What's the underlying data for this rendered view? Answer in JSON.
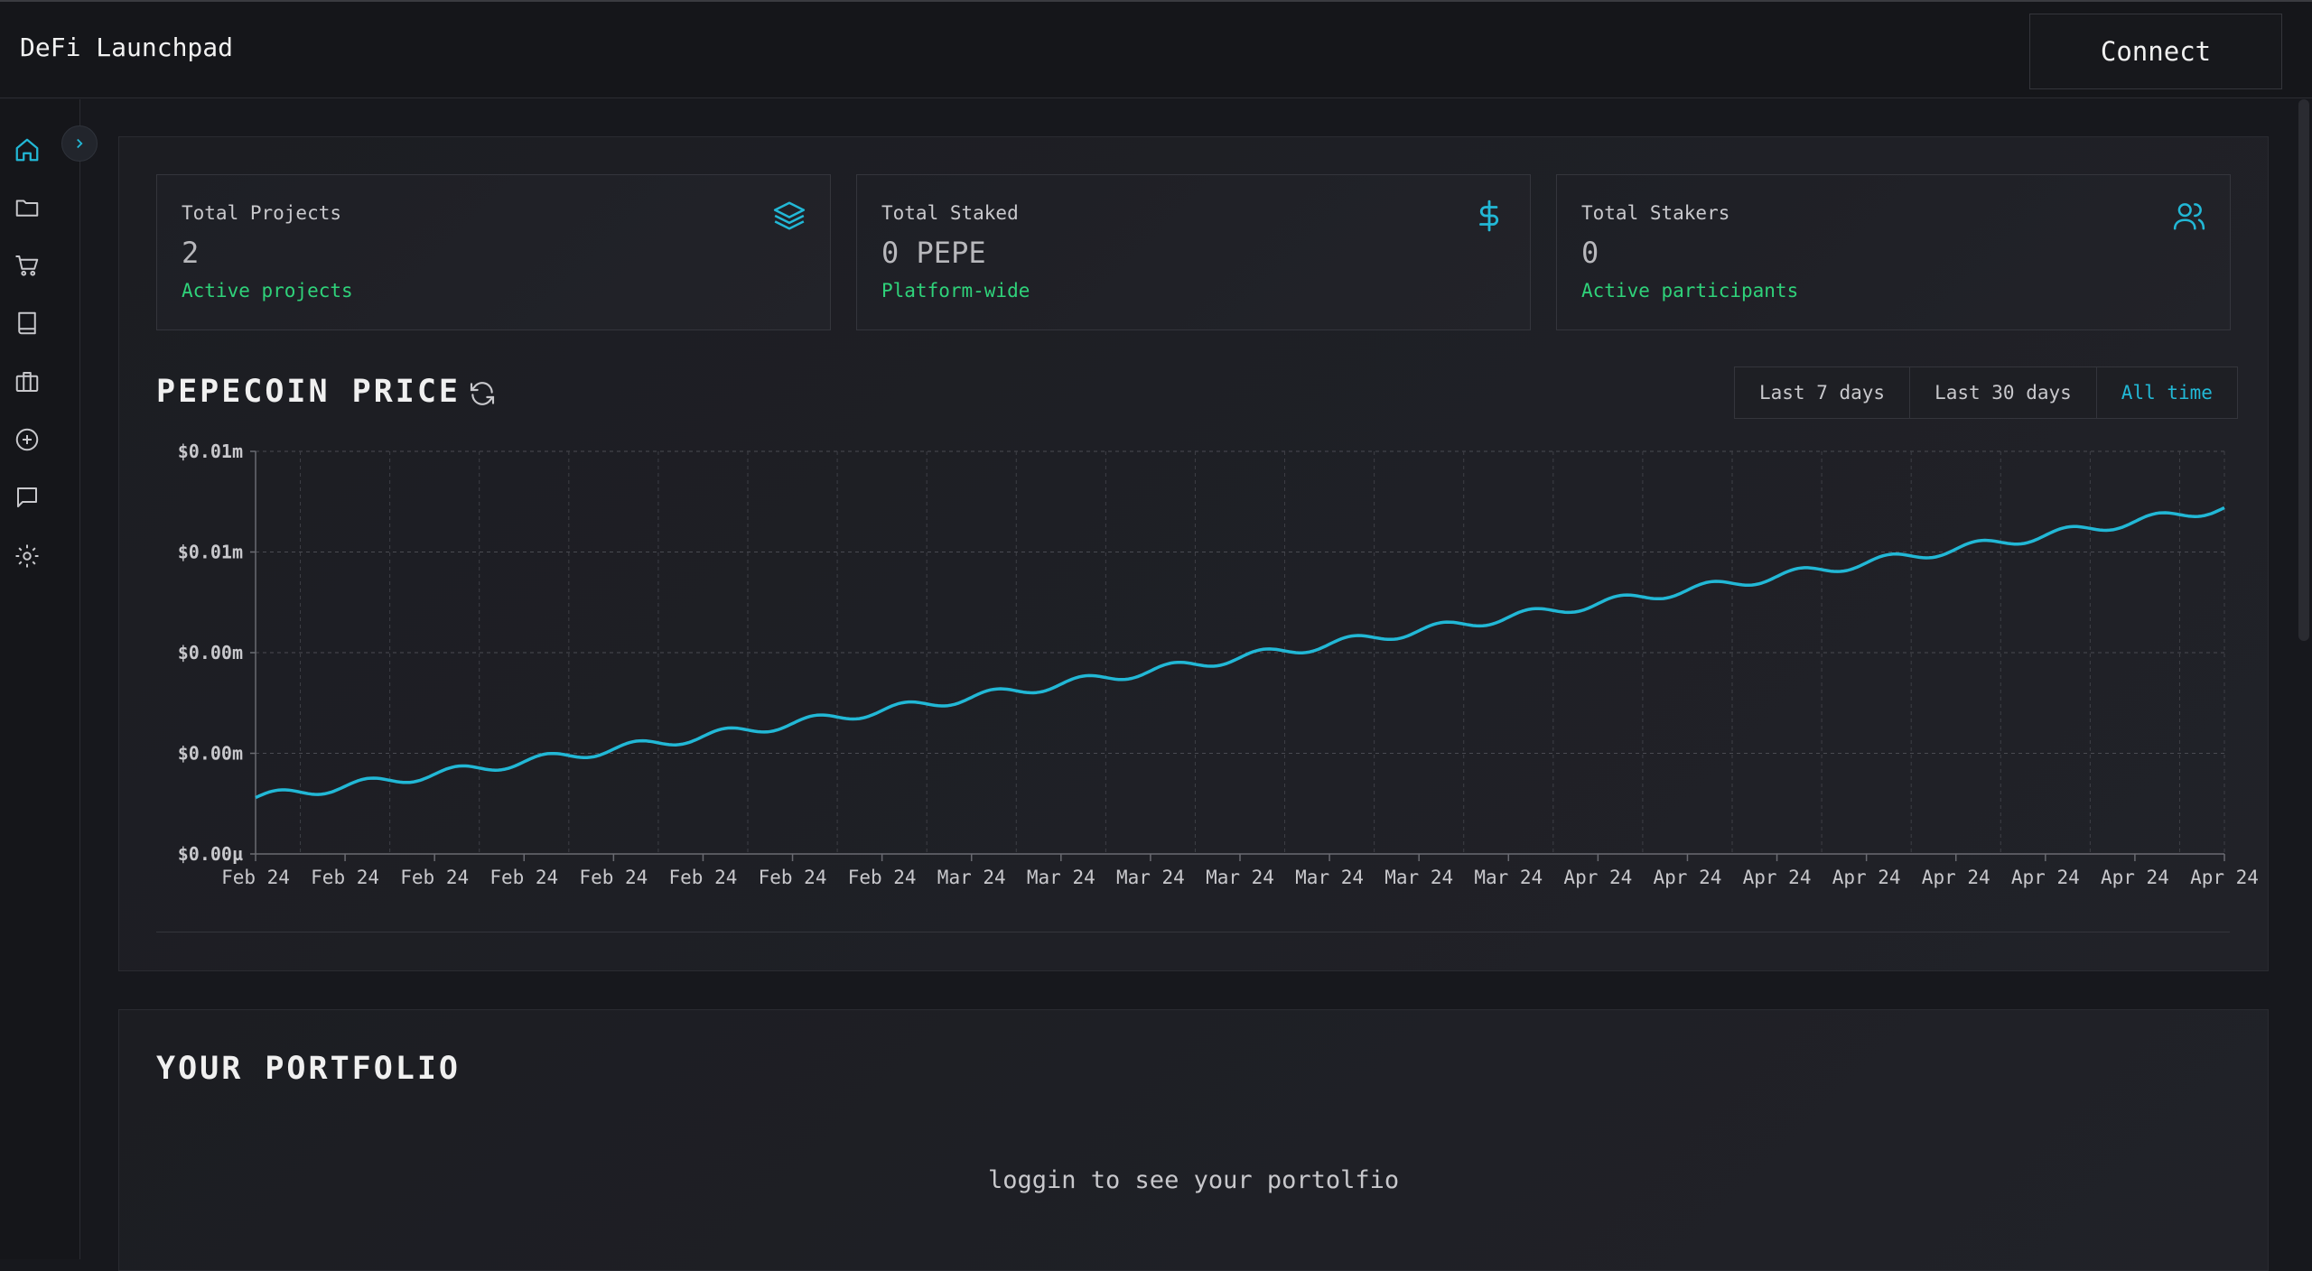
{
  "header": {
    "brand": "DeFi Launchpad",
    "connect_label": "Connect"
  },
  "sidebar": {
    "items": [
      {
        "icon": "home-icon"
      },
      {
        "icon": "folder-icon"
      },
      {
        "icon": "cart-icon"
      },
      {
        "icon": "book-icon"
      },
      {
        "icon": "briefcase-icon"
      },
      {
        "icon": "plus-circle-icon"
      },
      {
        "icon": "message-icon"
      },
      {
        "icon": "gear-icon"
      }
    ],
    "toggle_icon": "chevron-right-icon"
  },
  "stats": [
    {
      "title": "Total Projects",
      "value": "2",
      "sub": "Active projects",
      "icon": "layers-icon"
    },
    {
      "title": "Total Staked",
      "value": "0 PEPE",
      "sub": "Platform-wide",
      "icon": "dollar-icon"
    },
    {
      "title": "Total Stakers",
      "value": "0",
      "sub": "Active participants",
      "icon": "users-icon"
    }
  ],
  "price_section": {
    "title": "PEPECOIN PRICE",
    "ranges": [
      "Last 7 days",
      "Last 30 days",
      "All time"
    ],
    "active_range": "All time"
  },
  "chart_data": {
    "type": "line",
    "title": "PEPECOIN PRICE",
    "ytick_labels": [
      "$0.01m",
      "$0.01m",
      "$0.00m",
      "$0.00m",
      "$0.00µ"
    ],
    "xtick_labels": [
      "Feb 24",
      "Feb 24",
      "Feb 24",
      "Feb 24",
      "Feb 24",
      "Feb 24",
      "Feb 24",
      "Feb 24",
      "Mar 24",
      "Mar 24",
      "Mar 24",
      "Mar 24",
      "Mar 24",
      "Mar 24",
      "Mar 24",
      "Apr 24",
      "Apr 24",
      "Apr 24",
      "Apr 24",
      "Apr 24",
      "Apr 24",
      "Apr 24",
      "Apr 24"
    ],
    "ylim": [
      0,
      1
    ],
    "y_start": 0.14,
    "y_end": 0.86,
    "series": [
      {
        "color": "#22b8d6"
      }
    ],
    "grid": true
  },
  "portfolio": {
    "title": "YOUR PORTFOLIO",
    "message": "loggin to see your portolfio"
  }
}
